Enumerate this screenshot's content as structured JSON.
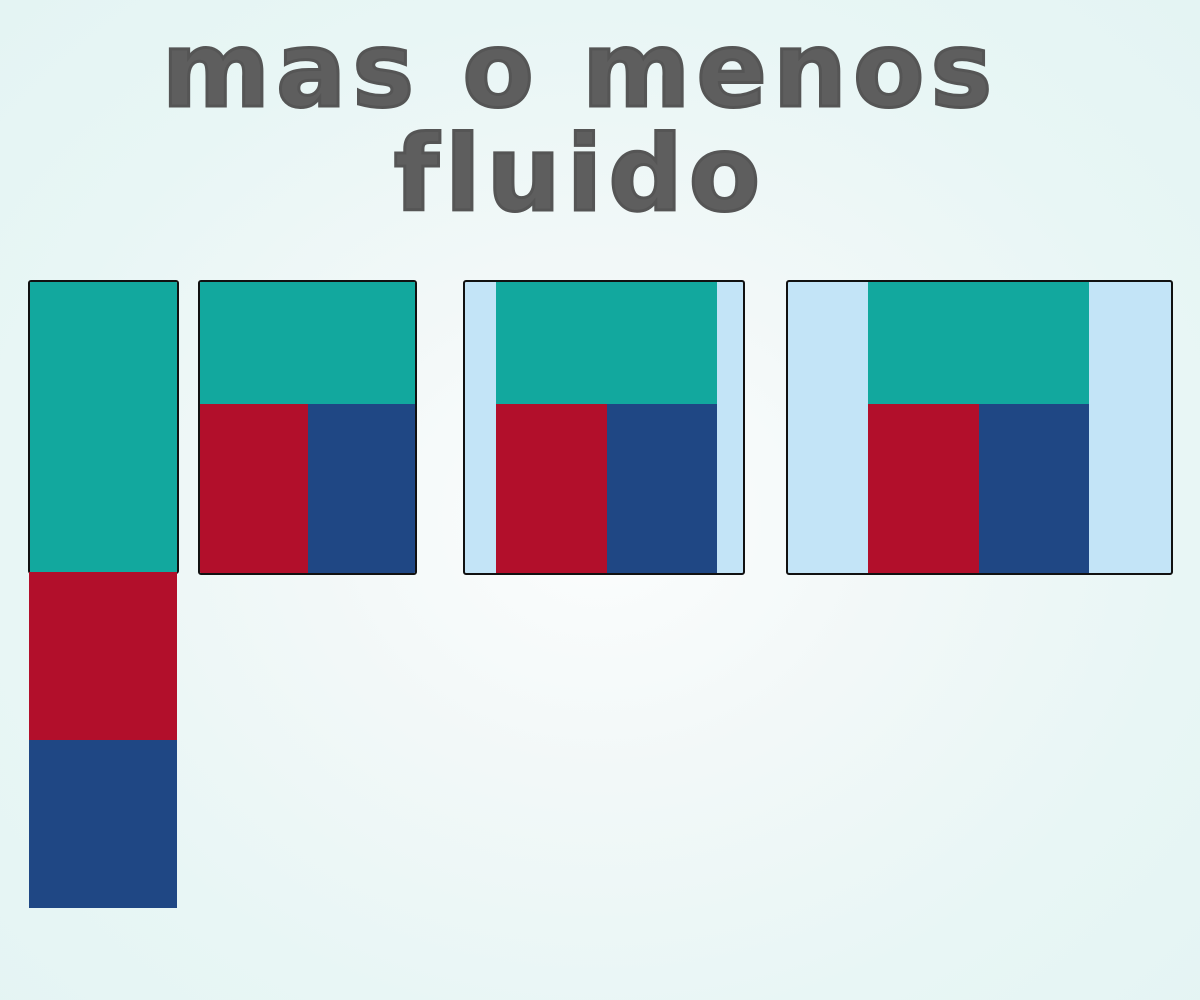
{
  "title": "mas o menos fluido",
  "colors": {
    "header": "#12a89e",
    "left_cell": "#b20f2b",
    "right_cell": "#1f4784",
    "margin": "#c3e4f7",
    "border": "#111111",
    "background": "#eaf6f5",
    "title": "#5e5e5e"
  }
}
